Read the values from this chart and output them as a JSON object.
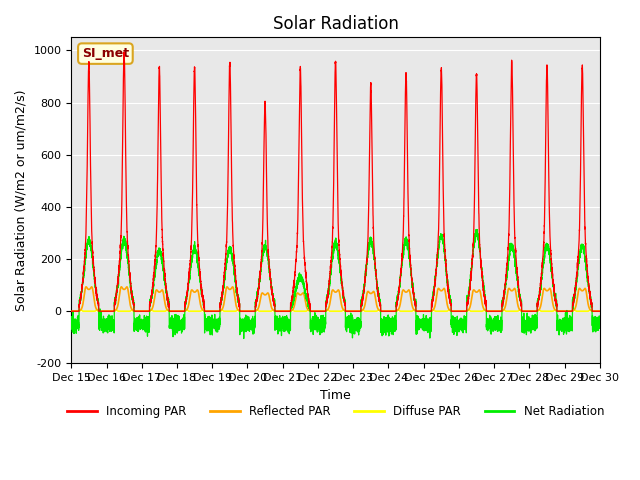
{
  "title": "Solar Radiation",
  "ylabel": "Solar Radiation (W/m2 or um/m2/s)",
  "xlabel": "Time",
  "ylim": [
    -200,
    1050
  ],
  "yticks": [
    -200,
    0,
    200,
    400,
    600,
    800,
    1000
  ],
  "xlim": [
    0,
    15
  ],
  "xtick_labels": [
    "Dec 15",
    "Dec 16",
    "Dec 17",
    "Dec 18",
    "Dec 19",
    "Dec 20",
    "Dec 21",
    "Dec 22",
    "Dec 23",
    "Dec 24",
    "Dec 25",
    "Dec 26",
    "Dec 27",
    "Dec 28",
    "Dec 29",
    "Dec 30"
  ],
  "legend_labels": [
    "Incoming PAR",
    "Reflected PAR",
    "Diffuse PAR",
    "Net Radiation"
  ],
  "station_label": "SI_met",
  "bg_color": "#e8e8e8",
  "title_fontsize": 12,
  "axis_fontsize": 9,
  "tick_fontsize": 8,
  "day_peaks_incoming": [
    950,
    990,
    930,
    940,
    950,
    800,
    930,
    960,
    870,
    910,
    930,
    910,
    960,
    940,
    940
  ],
  "day_peaks_net": [
    270,
    270,
    230,
    240,
    240,
    250,
    130,
    260,
    270,
    270,
    290,
    300,
    250,
    250,
    250
  ],
  "day_peaks_reflected": [
    80,
    80,
    70,
    70,
    80,
    60,
    60,
    70,
    65,
    70,
    75,
    70,
    75,
    75,
    75
  ]
}
